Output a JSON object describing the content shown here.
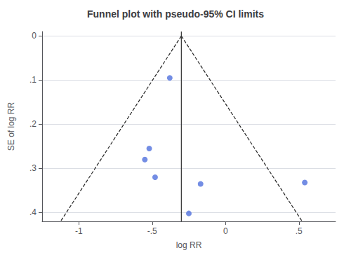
{
  "chart_data": {
    "type": "scatter",
    "title": "Funnel plot with pseudo-95% CI limits",
    "xlabel": "log RR",
    "ylabel": "SE of log RR",
    "xlim": [
      -1.25,
      0.75
    ],
    "ylim": [
      0.42,
      -0.01
    ],
    "xticks": [
      -1,
      {
        "value": -0.5,
        "label": "-.5"
      },
      0,
      {
        "value": 0.5,
        "label": ".5"
      }
    ],
    "yticks": [
      0,
      {
        "value": 0.1,
        "label": ".1"
      },
      {
        "value": 0.2,
        "label": ".2"
      },
      {
        "value": 0.3,
        "label": ".3"
      },
      {
        "value": 0.4,
        "label": ".4"
      }
    ],
    "grid": "y",
    "series": [
      {
        "type": "scatter",
        "marker": "circle",
        "values": [
          [
            -0.38,
            0.095
          ],
          [
            -0.52,
            0.255
          ],
          [
            -0.55,
            0.28
          ],
          [
            -0.48,
            0.32
          ],
          [
            -0.17,
            0.335
          ],
          [
            -0.25,
            0.402
          ],
          [
            0.54,
            0.332
          ]
        ]
      },
      {
        "type": "line",
        "line_style": "dashed",
        "color": "#222222",
        "values": [
          [
            -0.301,
            0
          ],
          [
            -1.1242,
            0.42
          ]
        ]
      },
      {
        "type": "line",
        "line_style": "dashed",
        "color": "#222222",
        "values": [
          [
            -0.301,
            0
          ],
          [
            0.5222,
            0.42
          ]
        ]
      },
      {
        "type": "line",
        "line_style": "solid",
        "color": "#333333",
        "values": [
          [
            -0.301,
            -0.01
          ],
          [
            -0.301,
            0.42
          ]
        ]
      }
    ]
  }
}
